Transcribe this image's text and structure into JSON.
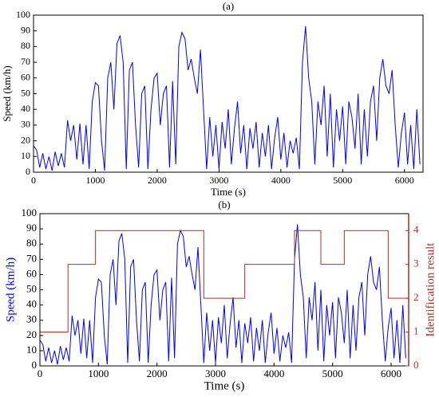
{
  "chart_data": [
    {
      "type": "line",
      "title": "(a)",
      "xlabel": "Time (s)",
      "ylabel": "Speed (km/h)",
      "xlim": [
        0,
        6300
      ],
      "ylim": [
        0,
        100
      ],
      "xticks": [
        0,
        1000,
        2000,
        3000,
        4000,
        5000,
        6000
      ],
      "yticks": [
        0,
        10,
        20,
        30,
        40,
        50,
        60,
        70,
        80,
        90,
        100
      ],
      "series": [
        {
          "name": "Speed",
          "color": "#0000ff",
          "x": [
            0,
            50,
            100,
            150,
            200,
            250,
            300,
            350,
            400,
            450,
            500,
            550,
            600,
            650,
            700,
            750,
            800,
            850,
            900,
            950,
            1000,
            1050,
            1100,
            1150,
            1200,
            1250,
            1300,
            1350,
            1400,
            1450,
            1500,
            1550,
            1600,
            1650,
            1700,
            1750,
            1800,
            1850,
            1900,
            1950,
            2000,
            2050,
            2100,
            2150,
            2200,
            2250,
            2300,
            2350,
            2400,
            2450,
            2500,
            2550,
            2600,
            2650,
            2700,
            2750,
            2800,
            2850,
            2900,
            2950,
            3000,
            3050,
            3100,
            3150,
            3200,
            3250,
            3300,
            3350,
            3400,
            3450,
            3500,
            3550,
            3600,
            3650,
            3700,
            3750,
            3800,
            3850,
            3900,
            3950,
            4000,
            4050,
            4100,
            4150,
            4200,
            4250,
            4300,
            4350,
            4400,
            4450,
            4500,
            4550,
            4600,
            4650,
            4700,
            4750,
            4800,
            4850,
            4900,
            4950,
            5000,
            5050,
            5100,
            5150,
            5200,
            5250,
            5300,
            5350,
            5400,
            5450,
            5500,
            5550,
            5600,
            5650,
            5700,
            5750,
            5800,
            5850,
            5900,
            5950,
            6000,
            6050,
            6100,
            6150,
            6200,
            6250
          ],
          "values": [
            17,
            14,
            3,
            12,
            2,
            10,
            1,
            13,
            4,
            12,
            3,
            33,
            20,
            30,
            8,
            31,
            5,
            30,
            2,
            45,
            57,
            55,
            20,
            1,
            60,
            70,
            40,
            82,
            87,
            70,
            2,
            65,
            70,
            30,
            3,
            50,
            55,
            2,
            40,
            60,
            63,
            30,
            50,
            55,
            3,
            58,
            5,
            80,
            89,
            85,
            65,
            72,
            60,
            50,
            78,
            40,
            2,
            35,
            10,
            30,
            2,
            32,
            15,
            40,
            5,
            28,
            45,
            12,
            30,
            2,
            28,
            15,
            32,
            3,
            25,
            10,
            30,
            2,
            22,
            35,
            8,
            25,
            3,
            20,
            12,
            22,
            2,
            70,
            93,
            60,
            45,
            5,
            45,
            30,
            55,
            10,
            50,
            3,
            40,
            20,
            42,
            5,
            45,
            35,
            15,
            50,
            5,
            40,
            10,
            45,
            55,
            20,
            60,
            72,
            55,
            50,
            65,
            30,
            3,
            25,
            38,
            5,
            30,
            2,
            40,
            5
          ]
        }
      ]
    },
    {
      "type": "line",
      "title": "(b)",
      "xlabel": "Time (s)",
      "ylabel": "Speed (km/h)",
      "y2label": "Identification result",
      "xlim": [
        0,
        6300
      ],
      "ylim": [
        0,
        100
      ],
      "y2lim": [
        0,
        4.5
      ],
      "xticks": [
        0,
        1000,
        2000,
        3000,
        4000,
        5000,
        6000
      ],
      "yticks": [
        0,
        10,
        20,
        30,
        40,
        50,
        60,
        70,
        80,
        90,
        100
      ],
      "y2ticks": [
        0,
        1,
        2,
        3,
        4
      ],
      "series": [
        {
          "name": "Speed",
          "color": "#0000ff",
          "x": [
            0,
            50,
            100,
            150,
            200,
            250,
            300,
            350,
            400,
            450,
            500,
            550,
            600,
            650,
            700,
            750,
            800,
            850,
            900,
            950,
            1000,
            1050,
            1100,
            1150,
            1200,
            1250,
            1300,
            1350,
            1400,
            1450,
            1500,
            1550,
            1600,
            1650,
            1700,
            1750,
            1800,
            1850,
            1900,
            1950,
            2000,
            2050,
            2100,
            2150,
            2200,
            2250,
            2300,
            2350,
            2400,
            2450,
            2500,
            2550,
            2600,
            2650,
            2700,
            2750,
            2800,
            2850,
            2900,
            2950,
            3000,
            3050,
            3100,
            3150,
            3200,
            3250,
            3300,
            3350,
            3400,
            3450,
            3500,
            3550,
            3600,
            3650,
            3700,
            3750,
            3800,
            3850,
            3900,
            3950,
            4000,
            4050,
            4100,
            4150,
            4200,
            4250,
            4300,
            4350,
            4400,
            4450,
            4500,
            4550,
            4600,
            4650,
            4700,
            4750,
            4800,
            4850,
            4900,
            4950,
            5000,
            5050,
            5100,
            5150,
            5200,
            5250,
            5300,
            5350,
            5400,
            5450,
            5500,
            5550,
            5600,
            5650,
            5700,
            5750,
            5800,
            5850,
            5900,
            5950,
            6000,
            6050,
            6100,
            6150,
            6200,
            6250
          ],
          "values": [
            17,
            14,
            3,
            12,
            2,
            10,
            1,
            13,
            4,
            12,
            3,
            33,
            20,
            30,
            8,
            31,
            5,
            30,
            2,
            45,
            57,
            55,
            20,
            1,
            60,
            70,
            40,
            82,
            87,
            70,
            2,
            65,
            70,
            30,
            3,
            50,
            55,
            2,
            40,
            60,
            63,
            30,
            50,
            55,
            3,
            58,
            5,
            80,
            89,
            85,
            65,
            72,
            60,
            50,
            78,
            40,
            2,
            35,
            10,
            30,
            2,
            32,
            15,
            40,
            5,
            28,
            45,
            12,
            30,
            2,
            28,
            15,
            32,
            3,
            25,
            10,
            30,
            2,
            22,
            35,
            8,
            25,
            3,
            20,
            12,
            22,
            2,
            70,
            93,
            60,
            45,
            5,
            45,
            30,
            55,
            10,
            50,
            3,
            40,
            20,
            42,
            5,
            45,
            35,
            15,
            50,
            5,
            40,
            10,
            45,
            55,
            20,
            60,
            72,
            55,
            50,
            65,
            30,
            3,
            25,
            38,
            5,
            30,
            2,
            40,
            5
          ]
        },
        {
          "name": "Identification result",
          "color": "#b03020",
          "axis": "y2",
          "step": "post",
          "x": [
            0,
            480,
            950,
            2800,
            3500,
            4350,
            4800,
            5200,
            5950,
            6300
          ],
          "values": [
            1,
            3,
            4,
            2,
            3,
            4,
            3,
            4,
            2,
            2
          ]
        }
      ]
    }
  ]
}
